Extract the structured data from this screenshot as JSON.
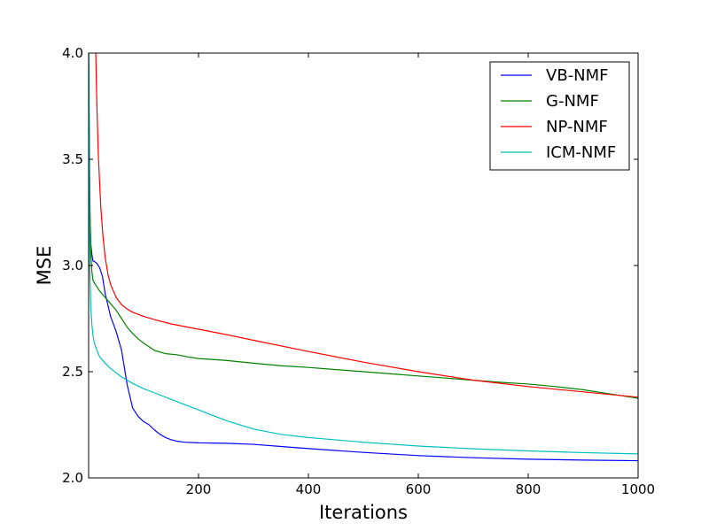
{
  "chart_data": {
    "type": "line",
    "title": "",
    "xlabel": "Iterations",
    "ylabel": "MSE",
    "xlim": [
      0,
      1000
    ],
    "ylim": [
      2.0,
      4.0
    ],
    "xticks": [
      200,
      400,
      600,
      800,
      1000
    ],
    "xtick_labels": [
      "200",
      "400",
      "600",
      "800",
      "1000"
    ],
    "yticks": [
      2.0,
      2.5,
      3.0,
      3.5,
      4.0
    ],
    "ytick_labels": [
      "2.0",
      "2.5",
      "3.0",
      "3.5",
      "4.0"
    ],
    "grid": false,
    "legend_position": "top-right",
    "series": [
      {
        "name": "VB-NMF",
        "color": "#0000ff",
        "x": [
          0,
          1,
          2,
          4,
          6,
          8,
          10,
          15,
          20,
          25,
          30,
          40,
          50,
          60,
          70,
          80,
          90,
          100,
          110,
          120,
          130,
          140,
          150,
          160,
          175,
          200,
          250,
          300,
          350,
          400,
          500,
          600,
          700,
          800,
          900,
          1000
        ],
        "y": [
          4.0,
          3.6,
          3.25,
          3.1,
          3.05,
          3.02,
          3.02,
          3.01,
          2.99,
          2.95,
          2.87,
          2.76,
          2.69,
          2.6,
          2.44,
          2.33,
          2.29,
          2.265,
          2.25,
          2.225,
          2.205,
          2.19,
          2.18,
          2.173,
          2.168,
          2.165,
          2.163,
          2.158,
          2.148,
          2.138,
          2.12,
          2.105,
          2.095,
          2.088,
          2.084,
          2.081
        ]
      },
      {
        "name": "G-NMF",
        "color": "#008000",
        "x": [
          0,
          1,
          2,
          4,
          6,
          8,
          10,
          15,
          20,
          30,
          40,
          50,
          60,
          70,
          80,
          90,
          100,
          120,
          140,
          160,
          180,
          200,
          250,
          300,
          350,
          400,
          450,
          500,
          550,
          600,
          650,
          700,
          750,
          800,
          850,
          900,
          950,
          1000
        ],
        "y": [
          4.0,
          3.7,
          3.35,
          3.05,
          2.97,
          2.93,
          2.92,
          2.9,
          2.88,
          2.85,
          2.82,
          2.79,
          2.75,
          2.71,
          2.68,
          2.655,
          2.635,
          2.6,
          2.585,
          2.58,
          2.57,
          2.562,
          2.553,
          2.54,
          2.528,
          2.52,
          2.51,
          2.5,
          2.49,
          2.48,
          2.47,
          2.46,
          2.45,
          2.442,
          2.43,
          2.415,
          2.395,
          2.375
        ]
      },
      {
        "name": "NP-NMF",
        "color": "#ff0000",
        "x": [
          13,
          15,
          18,
          22,
          26,
          30,
          35,
          40,
          50,
          60,
          70,
          80,
          100,
          120,
          150,
          200,
          250,
          300,
          400,
          500,
          600,
          700,
          800,
          900,
          1000
        ],
        "y": [
          4.0,
          3.75,
          3.5,
          3.28,
          3.14,
          3.04,
          2.96,
          2.91,
          2.85,
          2.815,
          2.795,
          2.78,
          2.76,
          2.745,
          2.725,
          2.7,
          2.675,
          2.648,
          2.595,
          2.545,
          2.5,
          2.46,
          2.43,
          2.405,
          2.38
        ]
      },
      {
        "name": "ICM-NMF",
        "color": "#00bfbf",
        "x": [
          0,
          1,
          2,
          4,
          6,
          8,
          10,
          15,
          20,
          30,
          40,
          50,
          60,
          80,
          100,
          120,
          150,
          200,
          250,
          300,
          350,
          400,
          500,
          600,
          700,
          800,
          900,
          1000
        ],
        "y": [
          4.0,
          3.4,
          3.0,
          2.8,
          2.72,
          2.67,
          2.64,
          2.6,
          2.57,
          2.54,
          2.515,
          2.495,
          2.475,
          2.445,
          2.42,
          2.4,
          2.37,
          2.32,
          2.27,
          2.23,
          2.205,
          2.19,
          2.168,
          2.15,
          2.137,
          2.127,
          2.119,
          2.113
        ]
      }
    ]
  }
}
